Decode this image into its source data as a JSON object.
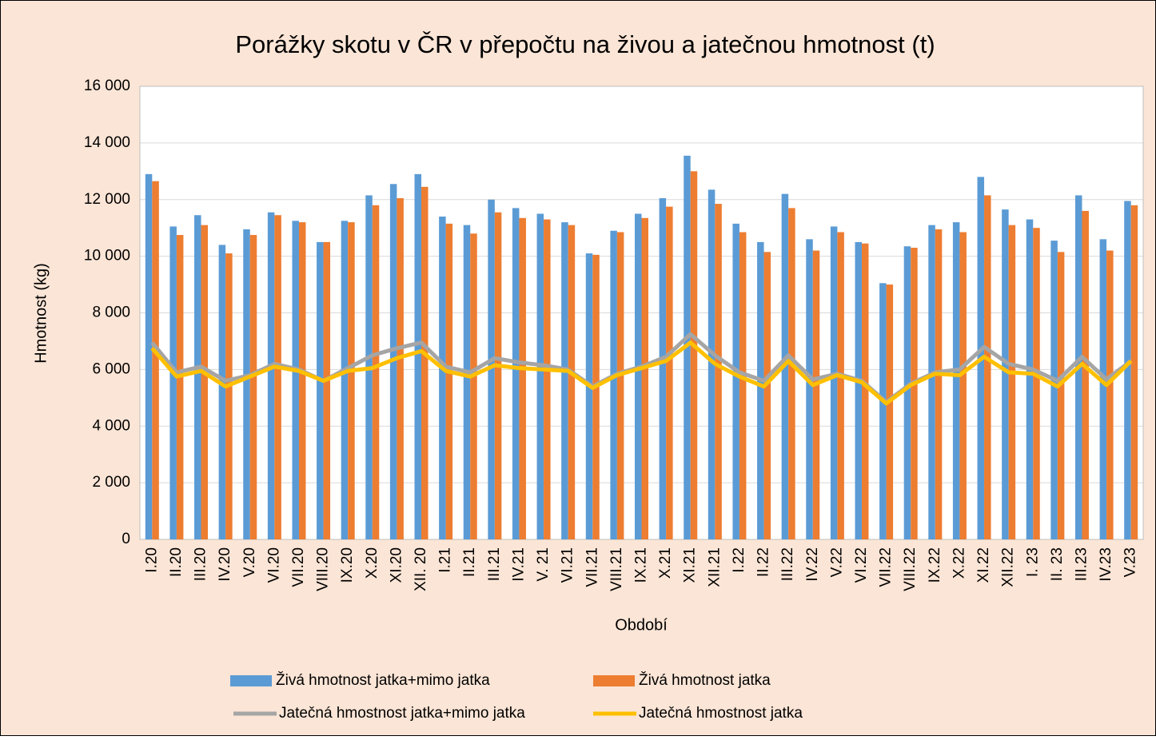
{
  "chart_data": {
    "type": "bar-line",
    "title": "Porážky skotu v ČR v přepočtu na živou a jatečnou hmotnost (t)",
    "y_label": "Hmotnost (kg)",
    "x_label": "Období",
    "categories": [
      "I.20",
      "II.20",
      "III.20",
      "IV.20",
      "V.20",
      "VI.20",
      "VII.20",
      "VIII.20",
      "IX.20",
      "X.20",
      "XI.20",
      "XII. 20",
      "I.21",
      "II.21",
      "III.21",
      "IV.21",
      "V. 21",
      "VI.21",
      "VII.21",
      "VIII.21",
      "IX.21",
      "X.21",
      "XI.21",
      "XII.21",
      "I.22",
      "II.22",
      "III.22",
      "IV.22",
      "V.22",
      "VI.22",
      "VII.22",
      "VIII.22",
      "IX.22",
      "X.22",
      "XI.22",
      "XII.22",
      "I. 23",
      "II. 23",
      "III.23",
      "IV.23",
      "V.23"
    ],
    "series": [
      {
        "name": "Živá hmotnost jatka+mimo jatka",
        "kind": "bar",
        "color": "#5b9bd5",
        "values": [
          12900,
          11050,
          11450,
          10400,
          10950,
          11550,
          11250,
          10500,
          11250,
          12150,
          12550,
          12900,
          11400,
          11100,
          12000,
          11700,
          11500,
          11200,
          10100,
          10900,
          11500,
          12050,
          13550,
          12350,
          11150,
          10500,
          12200,
          10600,
          11050,
          10500,
          9050,
          10350,
          11100,
          11200,
          12800,
          11650,
          11300,
          10550,
          12150,
          10600,
          11950
        ]
      },
      {
        "name": "Živá hmotnost jatka",
        "kind": "bar",
        "color": "#ed7d31",
        "values": [
          12650,
          10750,
          11100,
          10100,
          10750,
          11450,
          11200,
          10500,
          11200,
          11800,
          12050,
          12450,
          11150,
          10800,
          11550,
          11350,
          11300,
          11100,
          10050,
          10850,
          11350,
          11750,
          13000,
          11850,
          10850,
          10150,
          11700,
          10200,
          10850,
          10450,
          9000,
          10300,
          10950,
          10850,
          12150,
          11100,
          11000,
          10150,
          11600,
          10200,
          11800
        ]
      },
      {
        "name": "Jatečná hmostnost jatka+mimo jatka",
        "kind": "line",
        "color": "#a5a5a5",
        "values": [
          6950,
          5900,
          6100,
          5600,
          5800,
          6200,
          6000,
          5600,
          6050,
          6500,
          6750,
          6950,
          6100,
          5900,
          6400,
          6250,
          6150,
          6000,
          5400,
          5850,
          6100,
          6450,
          7250,
          6500,
          5900,
          5600,
          6500,
          5650,
          5850,
          5600,
          4850,
          5500,
          5900,
          6000,
          6800,
          6200,
          6000,
          5600,
          6450,
          5650,
          6300
        ]
      },
      {
        "name": "Jatečná hmostnost jatka",
        "kind": "line",
        "color": "#ffc000",
        "values": [
          6750,
          5750,
          5950,
          5400,
          5750,
          6100,
          5950,
          5600,
          5950,
          6050,
          6400,
          6650,
          5950,
          5750,
          6150,
          6050,
          6000,
          5950,
          5350,
          5800,
          6050,
          6300,
          6950,
          6200,
          5750,
          5400,
          6300,
          5450,
          5800,
          5550,
          4800,
          5450,
          5850,
          5800,
          6450,
          5900,
          5850,
          5400,
          6200,
          5450,
          6300
        ]
      }
    ],
    "ylim": [
      0,
      16000
    ],
    "yticks": [
      0,
      {
        "value": 2000,
        "label": "2 000"
      },
      {
        "value": 4000,
        "label": "4 000"
      },
      {
        "value": 6000,
        "label": "6 000"
      },
      {
        "value": 8000,
        "label": "8 000"
      },
      {
        "value": 10000,
        "label": "10 000"
      },
      {
        "value": 12000,
        "label": "12 000"
      },
      {
        "value": 14000,
        "label": "14 000"
      },
      {
        "value": 16000,
        "label": "16 000"
      }
    ],
    "grid": true
  }
}
